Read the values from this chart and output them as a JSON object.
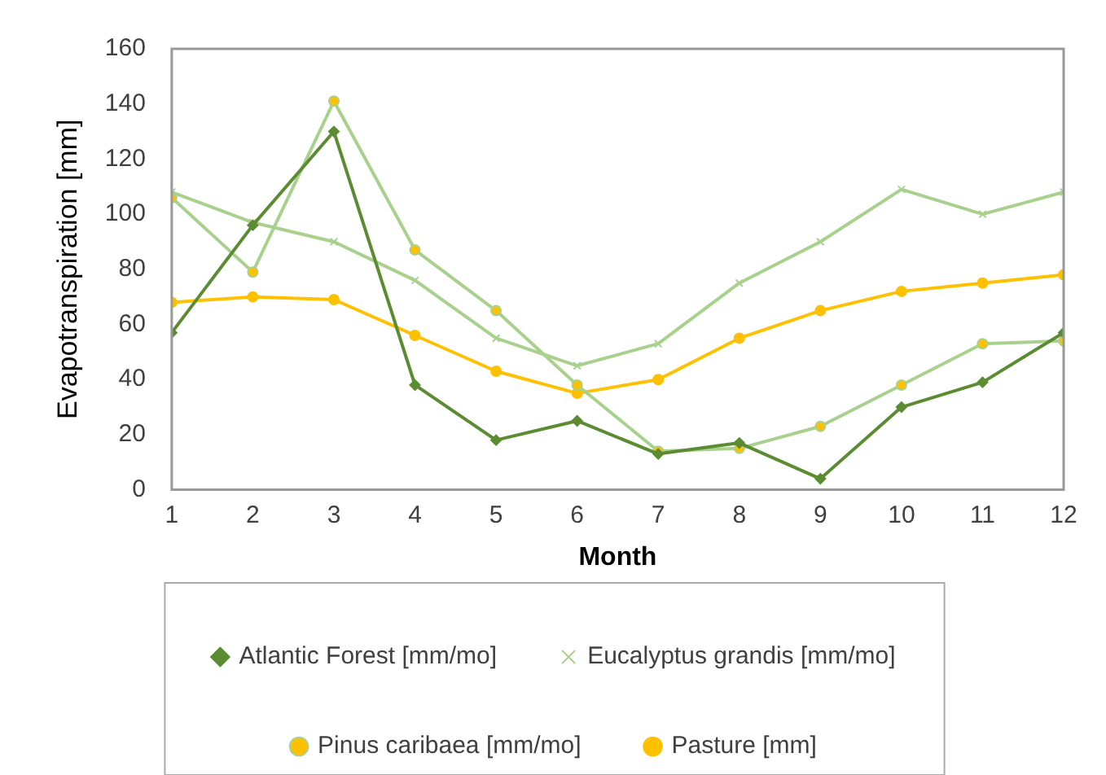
{
  "chart_data": {
    "type": "line",
    "xlabel": "Month",
    "ylabel": "Evapotranspiration [mm]",
    "x": [
      1,
      2,
      3,
      4,
      5,
      6,
      7,
      8,
      9,
      10,
      11,
      12
    ],
    "xlim": [
      1,
      12
    ],
    "xticks": [
      1,
      2,
      3,
      4,
      5,
      6,
      7,
      8,
      9,
      10,
      11,
      12
    ],
    "ylim": [
      0,
      160
    ],
    "yticks": [
      0,
      20,
      40,
      60,
      80,
      100,
      120,
      140,
      160
    ],
    "grid": false,
    "legend": "bottom",
    "line_style": "solid",
    "series": [
      {
        "name": "Atlantic Forest [mm/mo]",
        "color": "#5b8c32",
        "marker": "diamond",
        "values": [
          57,
          96,
          130,
          38,
          18,
          25,
          13,
          17,
          4,
          30,
          39,
          57
        ]
      },
      {
        "name": "Eucalyptus grandis [mm/mo]",
        "color": "#a9d18e",
        "marker": "cross",
        "values": [
          108,
          97,
          90,
          76,
          55,
          45,
          53,
          75,
          90,
          109,
          100,
          108
        ]
      },
      {
        "name": "Pinus caribaea [mm/mo]",
        "color": "#a9d18e",
        "marker": "circle",
        "values": [
          106,
          79,
          141,
          87,
          65,
          38,
          14,
          15,
          23,
          38,
          53,
          54
        ]
      },
      {
        "name": "Pasture [mm]",
        "color": "#ffc000",
        "marker": "circle",
        "values": [
          68,
          70,
          69,
          56,
          43,
          35,
          40,
          55,
          65,
          72,
          75,
          78
        ]
      }
    ]
  }
}
